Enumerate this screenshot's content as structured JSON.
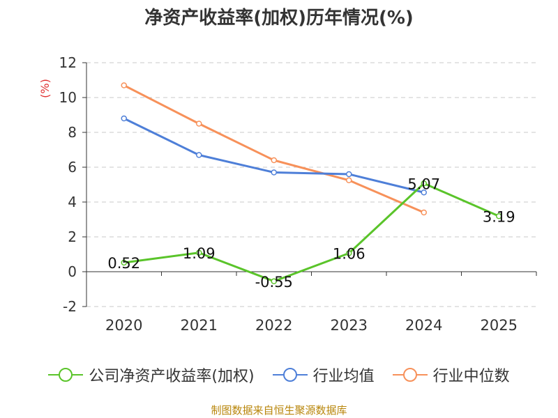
{
  "chart_data": {
    "type": "line",
    "title": "净资产收益率(加权)历年情况(%)",
    "ylabel": "(%)",
    "xlabel": "",
    "categories": [
      "2020",
      "2021",
      "2022",
      "2023",
      "2024",
      "2025"
    ],
    "ylim": [
      -2,
      12
    ],
    "yticks": [
      -2,
      0,
      2,
      4,
      6,
      8,
      10,
      12
    ],
    "grid": true,
    "legend_position": "bottom",
    "series": [
      {
        "name": "公司净资产收益率(加权)",
        "key": "company",
        "color": "#5ac42a",
        "values": [
          0.52,
          1.09,
          -0.55,
          1.06,
          5.07,
          3.19
        ],
        "labels": [
          "0.52",
          "1.09",
          "-0.55",
          "1.06",
          "5.07",
          "3.19"
        ]
      },
      {
        "name": "行业均值",
        "key": "industry_avg",
        "color": "#4e7fd8",
        "values": [
          8.8,
          6.7,
          5.7,
          5.6,
          4.55,
          null
        ]
      },
      {
        "name": "行业中位数",
        "key": "industry_median",
        "color": "#f7915a",
        "values": [
          10.7,
          8.5,
          6.4,
          5.25,
          3.4,
          null
        ]
      }
    ]
  },
  "source_note": "制图数据来自恒生聚源数据库"
}
